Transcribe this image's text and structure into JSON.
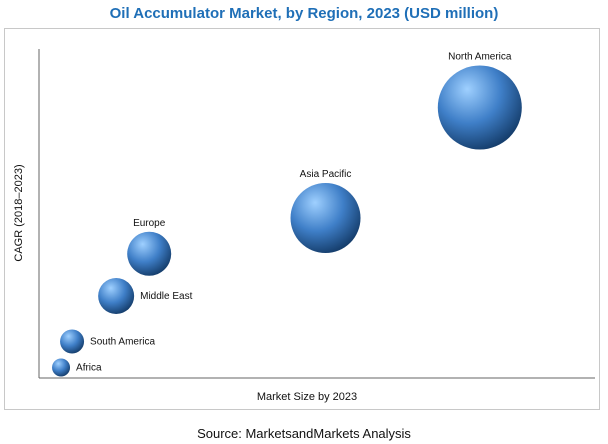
{
  "title": "Oil Accumulator Market, by Region, 2023 (USD million)",
  "source": "Source: MarketsandMarkets Analysis",
  "colors": {
    "title": "#1f6fb7",
    "bubble_light": "#9fd0ff",
    "bubble_mid": "#3f7fc8",
    "bubble_dark": "#163f6e",
    "axis": "#666666"
  },
  "chart_data": {
    "type": "scatter",
    "title": "Oil Accumulator Market, by Region, 2023 (USD million)",
    "xlabel": "Market Size by 2023",
    "ylabel": "CAGR (2018–2023)",
    "grid": false,
    "legend": "none",
    "axis_ticks": false,
    "note": "Axes carry no numeric tick labels; values are relative positions on a 0–100 scale, bubble size relative market size.",
    "xlim": [
      0,
      100
    ],
    "ylim": [
      0,
      100
    ],
    "points": [
      {
        "label": "North America",
        "x": 80,
        "y": 82,
        "size": 42
      },
      {
        "label": "Asia Pacific",
        "x": 52,
        "y": 48,
        "size": 35
      },
      {
        "label": "Europe",
        "x": 20,
        "y": 37,
        "size": 22
      },
      {
        "label": "Middle East",
        "x": 14,
        "y": 24,
        "size": 18
      },
      {
        "label": "South America",
        "x": 6,
        "y": 10,
        "size": 12
      },
      {
        "label": "Africa",
        "x": 4,
        "y": 2,
        "size": 9
      }
    ]
  }
}
